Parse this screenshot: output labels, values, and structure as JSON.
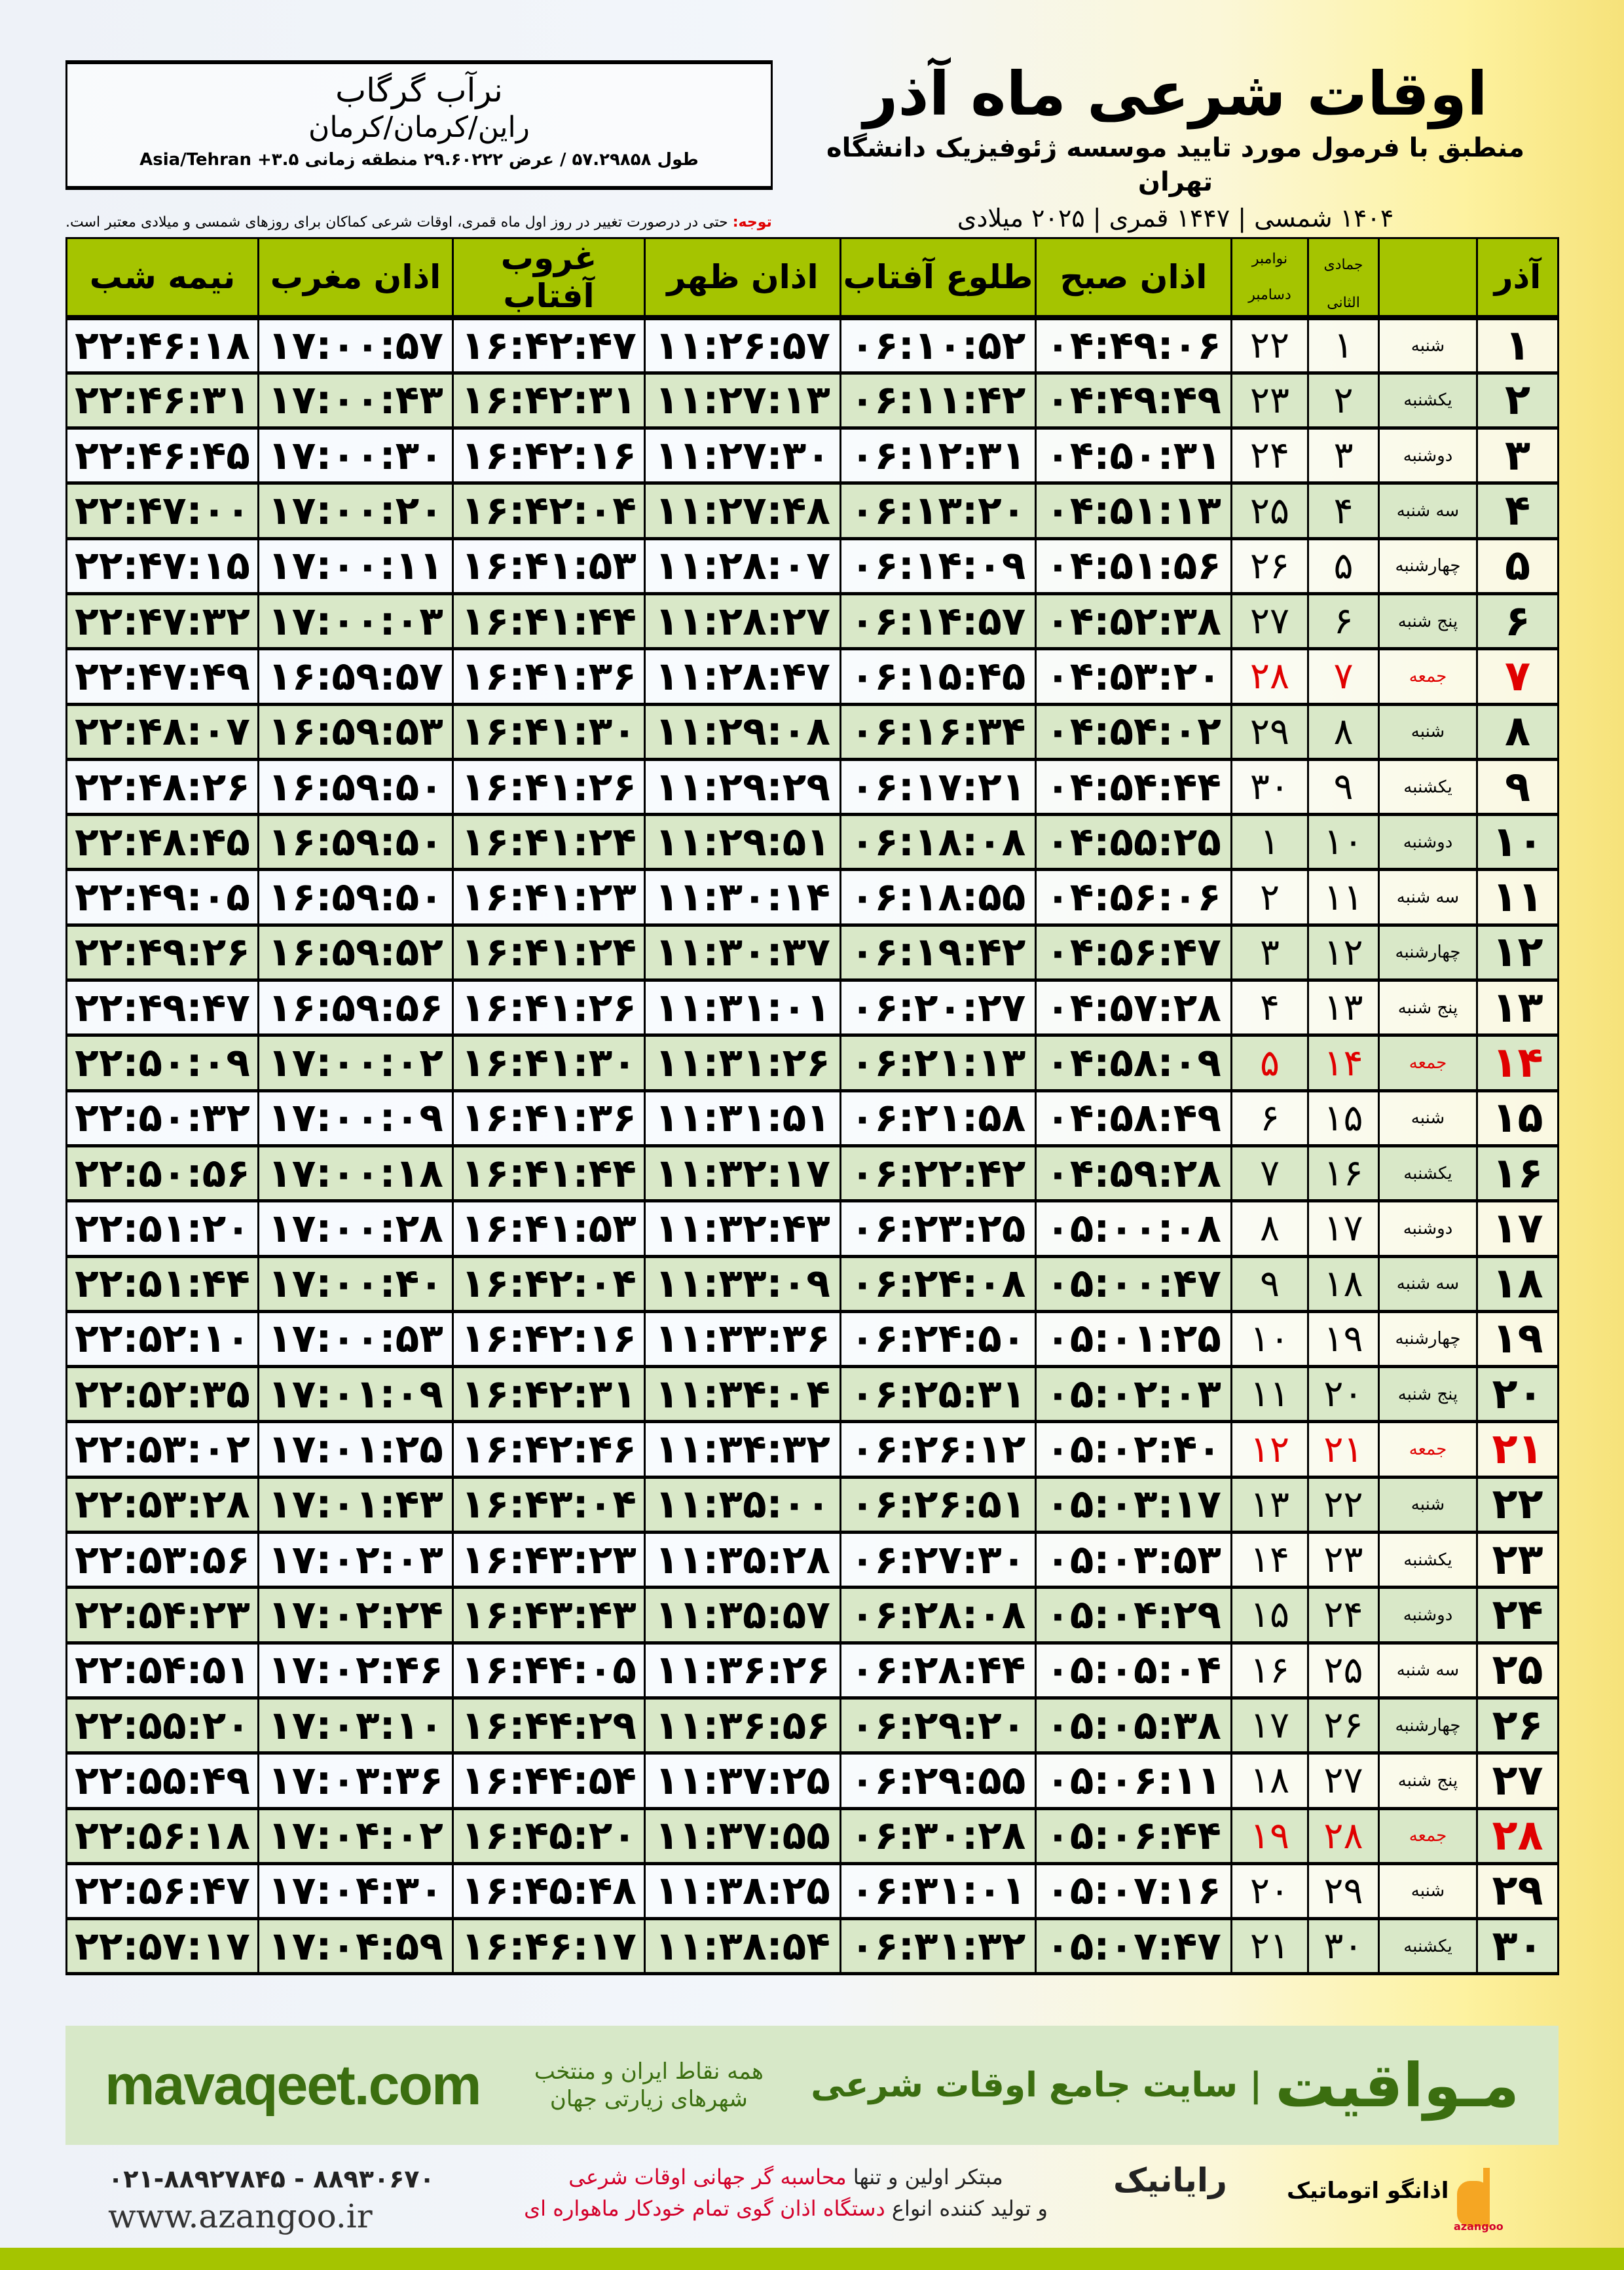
{
  "location": {
    "name": "نرآب گرگاب",
    "region": "راین/کرمان/کرمان",
    "coords": "طول ۵۷.۲۹۸۵۸ / عرض ۲۹.۶۰۲۲۲ منطقه زمانی ۳.۵+ Asia/Tehran"
  },
  "header": {
    "title": "اوقات شرعی ماه آذر",
    "subtitle": "منطبق با فرمول مورد تایید موسسه ژئوفیزیک دانشگاه تهران",
    "dates": "۱۴۰۴ شمسی | ۱۴۴۷ قمری | ۲۰۲۵ میلادی"
  },
  "note": {
    "label": "توجه:",
    "text": " حتی در درصورت تغییر در روز اول ماه قمری، اوقات شرعی کماکان برای روزهای شمسی و میلادی معتبر است."
  },
  "table": {
    "columns": {
      "day": "آذر",
      "hijri": "جمادی الثانی",
      "greg_top": "نوامبر",
      "greg_bottom": "دسامبر",
      "subh": "اذان صبح",
      "sunrise": "طلوع آفتاب",
      "zuhr": "اذان ظهر",
      "sunset": "غروب آفتاب",
      "maghrib": "اذان مغرب",
      "midnight": "نیمه شب"
    },
    "rows": [
      [
        "۱",
        "شنبه",
        "۱",
        "۲۲",
        "۰۴:۴۹:۰۶",
        "۰۶:۱۰:۵۲",
        "۱۱:۲۶:۵۷",
        "۱۶:۴۲:۴۷",
        "۱۷:۰۰:۵۷",
        "۲۲:۴۶:۱۸",
        false
      ],
      [
        "۲",
        "یکشنبه",
        "۲",
        "۲۳",
        "۰۴:۴۹:۴۹",
        "۰۶:۱۱:۴۲",
        "۱۱:۲۷:۱۳",
        "۱۶:۴۲:۳۱",
        "۱۷:۰۰:۴۳",
        "۲۲:۴۶:۳۱",
        false
      ],
      [
        "۳",
        "دوشنبه",
        "۳",
        "۲۴",
        "۰۴:۵۰:۳۱",
        "۰۶:۱۲:۳۱",
        "۱۱:۲۷:۳۰",
        "۱۶:۴۲:۱۶",
        "۱۷:۰۰:۳۰",
        "۲۲:۴۶:۴۵",
        false
      ],
      [
        "۴",
        "سه شنبه",
        "۴",
        "۲۵",
        "۰۴:۵۱:۱۳",
        "۰۶:۱۳:۲۰",
        "۱۱:۲۷:۴۸",
        "۱۶:۴۲:۰۴",
        "۱۷:۰۰:۲۰",
        "۲۲:۴۷:۰۰",
        false
      ],
      [
        "۵",
        "چهارشنبه",
        "۵",
        "۲۶",
        "۰۴:۵۱:۵۶",
        "۰۶:۱۴:۰۹",
        "۱۱:۲۸:۰۷",
        "۱۶:۴۱:۵۳",
        "۱۷:۰۰:۱۱",
        "۲۲:۴۷:۱۵",
        false
      ],
      [
        "۶",
        "پنج شنبه",
        "۶",
        "۲۷",
        "۰۴:۵۲:۳۸",
        "۰۶:۱۴:۵۷",
        "۱۱:۲۸:۲۷",
        "۱۶:۴۱:۴۴",
        "۱۷:۰۰:۰۳",
        "۲۲:۴۷:۳۲",
        false
      ],
      [
        "۷",
        "جمعه",
        "۷",
        "۲۸",
        "۰۴:۵۳:۲۰",
        "۰۶:۱۵:۴۵",
        "۱۱:۲۸:۴۷",
        "۱۶:۴۱:۳۶",
        "۱۶:۵۹:۵۷",
        "۲۲:۴۷:۴۹",
        true
      ],
      [
        "۸",
        "شنبه",
        "۸",
        "۲۹",
        "۰۴:۵۴:۰۲",
        "۰۶:۱۶:۳۴",
        "۱۱:۲۹:۰۸",
        "۱۶:۴۱:۳۰",
        "۱۶:۵۹:۵۳",
        "۲۲:۴۸:۰۷",
        false
      ],
      [
        "۹",
        "یکشنبه",
        "۹",
        "۳۰",
        "۰۴:۵۴:۴۴",
        "۰۶:۱۷:۲۱",
        "۱۱:۲۹:۲۹",
        "۱۶:۴۱:۲۶",
        "۱۶:۵۹:۵۰",
        "۲۲:۴۸:۲۶",
        false
      ],
      [
        "۱۰",
        "دوشنبه",
        "۱۰",
        "۱",
        "۰۴:۵۵:۲۵",
        "۰۶:۱۸:۰۸",
        "۱۱:۲۹:۵۱",
        "۱۶:۴۱:۲۴",
        "۱۶:۵۹:۵۰",
        "۲۲:۴۸:۴۵",
        false
      ],
      [
        "۱۱",
        "سه شنبه",
        "۱۱",
        "۲",
        "۰۴:۵۶:۰۶",
        "۰۶:۱۸:۵۵",
        "۱۱:۳۰:۱۴",
        "۱۶:۴۱:۲۳",
        "۱۶:۵۹:۵۰",
        "۲۲:۴۹:۰۵",
        false
      ],
      [
        "۱۲",
        "چهارشنبه",
        "۱۲",
        "۳",
        "۰۴:۵۶:۴۷",
        "۰۶:۱۹:۴۲",
        "۱۱:۳۰:۳۷",
        "۱۶:۴۱:۲۴",
        "۱۶:۵۹:۵۲",
        "۲۲:۴۹:۲۶",
        false
      ],
      [
        "۱۳",
        "پنج شنبه",
        "۱۳",
        "۴",
        "۰۴:۵۷:۲۸",
        "۰۶:۲۰:۲۷",
        "۱۱:۳۱:۰۱",
        "۱۶:۴۱:۲۶",
        "۱۶:۵۹:۵۶",
        "۲۲:۴۹:۴۷",
        false
      ],
      [
        "۱۴",
        "جمعه",
        "۱۴",
        "۵",
        "۰۴:۵۸:۰۹",
        "۰۶:۲۱:۱۳",
        "۱۱:۳۱:۲۶",
        "۱۶:۴۱:۳۰",
        "۱۷:۰۰:۰۲",
        "۲۲:۵۰:۰۹",
        true
      ],
      [
        "۱۵",
        "شنبه",
        "۱۵",
        "۶",
        "۰۴:۵۸:۴۹",
        "۰۶:۲۱:۵۸",
        "۱۱:۳۱:۵۱",
        "۱۶:۴۱:۳۶",
        "۱۷:۰۰:۰۹",
        "۲۲:۵۰:۳۲",
        false
      ],
      [
        "۱۶",
        "یکشنبه",
        "۱۶",
        "۷",
        "۰۴:۵۹:۲۸",
        "۰۶:۲۲:۴۲",
        "۱۱:۳۲:۱۷",
        "۱۶:۴۱:۴۴",
        "۱۷:۰۰:۱۸",
        "۲۲:۵۰:۵۶",
        false
      ],
      [
        "۱۷",
        "دوشنبه",
        "۱۷",
        "۸",
        "۰۵:۰۰:۰۸",
        "۰۶:۲۳:۲۵",
        "۱۱:۳۲:۴۳",
        "۱۶:۴۱:۵۳",
        "۱۷:۰۰:۲۸",
        "۲۲:۵۱:۲۰",
        false
      ],
      [
        "۱۸",
        "سه شنبه",
        "۱۸",
        "۹",
        "۰۵:۰۰:۴۷",
        "۰۶:۲۴:۰۸",
        "۱۱:۳۳:۰۹",
        "۱۶:۴۲:۰۴",
        "۱۷:۰۰:۴۰",
        "۲۲:۵۱:۴۴",
        false
      ],
      [
        "۱۹",
        "چهارشنبه",
        "۱۹",
        "۱۰",
        "۰۵:۰۱:۲۵",
        "۰۶:۲۴:۵۰",
        "۱۱:۳۳:۳۶",
        "۱۶:۴۲:۱۶",
        "۱۷:۰۰:۵۳",
        "۲۲:۵۲:۱۰",
        false
      ],
      [
        "۲۰",
        "پنج شنبه",
        "۲۰",
        "۱۱",
        "۰۵:۰۲:۰۳",
        "۰۶:۲۵:۳۱",
        "۱۱:۳۴:۰۴",
        "۱۶:۴۲:۳۱",
        "۱۷:۰۱:۰۹",
        "۲۲:۵۲:۳۵",
        false
      ],
      [
        "۲۱",
        "جمعه",
        "۲۱",
        "۱۲",
        "۰۵:۰۲:۴۰",
        "۰۶:۲۶:۱۲",
        "۱۱:۳۴:۳۲",
        "۱۶:۴۲:۴۶",
        "۱۷:۰۱:۲۵",
        "۲۲:۵۳:۰۲",
        true
      ],
      [
        "۲۲",
        "شنبه",
        "۲۲",
        "۱۳",
        "۰۵:۰۳:۱۷",
        "۰۶:۲۶:۵۱",
        "۱۱:۳۵:۰۰",
        "۱۶:۴۳:۰۴",
        "۱۷:۰۱:۴۳",
        "۲۲:۵۳:۲۸",
        false
      ],
      [
        "۲۳",
        "یکشنبه",
        "۲۳",
        "۱۴",
        "۰۵:۰۳:۵۳",
        "۰۶:۲۷:۳۰",
        "۱۱:۳۵:۲۸",
        "۱۶:۴۳:۲۳",
        "۱۷:۰۲:۰۳",
        "۲۲:۵۳:۵۶",
        false
      ],
      [
        "۲۴",
        "دوشنبه",
        "۲۴",
        "۱۵",
        "۰۵:۰۴:۲۹",
        "۰۶:۲۸:۰۸",
        "۱۱:۳۵:۵۷",
        "۱۶:۴۳:۴۳",
        "۱۷:۰۲:۲۴",
        "۲۲:۵۴:۲۳",
        false
      ],
      [
        "۲۵",
        "سه شنبه",
        "۲۵",
        "۱۶",
        "۰۵:۰۵:۰۴",
        "۰۶:۲۸:۴۴",
        "۱۱:۳۶:۲۶",
        "۱۶:۴۴:۰۵",
        "۱۷:۰۲:۴۶",
        "۲۲:۵۴:۵۱",
        false
      ],
      [
        "۲۶",
        "چهارشنبه",
        "۲۶",
        "۱۷",
        "۰۵:۰۵:۳۸",
        "۰۶:۲۹:۲۰",
        "۱۱:۳۶:۵۶",
        "۱۶:۴۴:۲۹",
        "۱۷:۰۳:۱۰",
        "۲۲:۵۵:۲۰",
        false
      ],
      [
        "۲۷",
        "پنج شنبه",
        "۲۷",
        "۱۸",
        "۰۵:۰۶:۱۱",
        "۰۶:۲۹:۵۵",
        "۱۱:۳۷:۲۵",
        "۱۶:۴۴:۵۴",
        "۱۷:۰۳:۳۶",
        "۲۲:۵۵:۴۹",
        false
      ],
      [
        "۲۸",
        "جمعه",
        "۲۸",
        "۱۹",
        "۰۵:۰۶:۴۴",
        "۰۶:۳۰:۲۸",
        "۱۱:۳۷:۵۵",
        "۱۶:۴۵:۲۰",
        "۱۷:۰۴:۰۲",
        "۲۲:۵۶:۱۸",
        true
      ],
      [
        "۲۹",
        "شنبه",
        "۲۹",
        "۲۰",
        "۰۵:۰۷:۱۶",
        "۰۶:۳۱:۰۱",
        "۱۱:۳۸:۲۵",
        "۱۶:۴۵:۴۸",
        "۱۷:۰۴:۳۰",
        "۲۲:۵۶:۴۷",
        false
      ],
      [
        "۳۰",
        "یکشنبه",
        "۳۰",
        "۲۱",
        "۰۵:۰۷:۴۷",
        "۰۶:۳۱:۳۲",
        "۱۱:۳۸:۵۴",
        "۱۶:۴۶:۱۷",
        "۱۷:۰۴:۵۹",
        "۲۲:۵۷:۱۷",
        false
      ]
    ]
  },
  "footer": {
    "site": "mavaqeet.com",
    "slogan": "همه نقاط ایران و منتخب شهرهای زیارتی جهان",
    "brand_line": "| سایت جامع اوقات شرعی",
    "brand": "مـواقیت",
    "phone": "۰۲۱-۸۸۹۲۷۸۴۵ - ۸۸۹۳۰۶۷۰",
    "web": "www.azangoo.ir",
    "promo1a": "مبتکر اولین و تنها ",
    "promo1b": "محاسبه گر جهانی اوقات شرعی",
    "promo2a": "و تولید کننده انواع ",
    "promo2b": "دستگاه اذان گوی تمام خودکار ماهواره ای",
    "rayanik": "رایانیک",
    "azangoo": "اذانگو اتوماتیک",
    "azangoo_sub": "azangoo"
  },
  "colors": {
    "header_green": "#a5c400",
    "row_green": "#d9e8c8",
    "friday_red": "#e00000",
    "brand_green": "#3b6e10"
  }
}
